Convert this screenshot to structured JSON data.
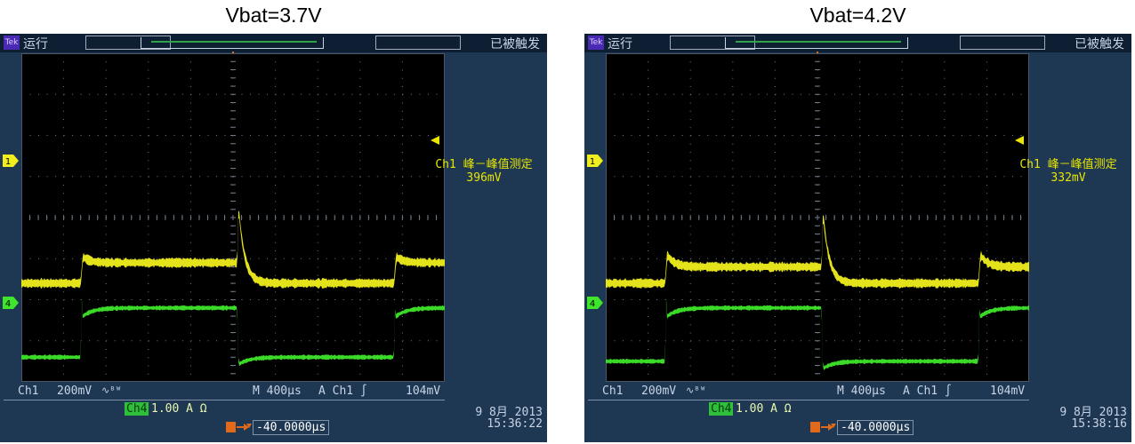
{
  "panels": [
    {
      "caption": "Vbat=3.7V",
      "brand": "Tek",
      "run_status": "运行",
      "trigger_status": "已被触发",
      "measurement": {
        "channel": "Ch1",
        "label": "峰－峰值测定",
        "value": "396mV"
      },
      "ch1_scale": "Ch1",
      "ch1_volts": "200mV",
      "ch1_coupling": "∿ᴮᵂ",
      "ch4_label": "Ch4",
      "ch4_scale": "1.00 A Ω",
      "timebase": "M 400µs",
      "trigger_source": "A  Ch1  ∫",
      "trigger_level": "104mV",
      "trigger_position": "-40.0000µs",
      "date": "9 8月 2013",
      "time": "15:36:22",
      "channel1_marker": "1",
      "channel4_marker": "4",
      "trigger_marker": "T"
    },
    {
      "caption": "Vbat=4.2V",
      "brand": "Tek",
      "run_status": "运行",
      "trigger_status": "已被触发",
      "measurement": {
        "channel": "Ch1",
        "label": "峰－峰值测定",
        "value": "332mV"
      },
      "ch1_scale": "Ch1",
      "ch1_volts": "200mV",
      "ch1_coupling": "∿ᴮᵂ",
      "ch4_label": "Ch4",
      "ch4_scale": "1.00 A Ω",
      "timebase": "M 400µs",
      "trigger_source": "A  Ch1  ∫",
      "trigger_level": "104mV",
      "trigger_position": "-40.0000µs",
      "date": "9 8月 2013",
      "time": "15:38:16",
      "channel1_marker": "1",
      "channel4_marker": "4",
      "trigger_marker": "T"
    }
  ],
  "colors": {
    "bezel": "#1e3752",
    "screen": "#000000",
    "ch1_trace": "#f0ee1c",
    "ch4_trace": "#3ee52a",
    "measurement_text": "#e8e600",
    "grid": "#6f7a88"
  },
  "waveform_shapes": [
    {
      "ch1": {
        "baseline_div": -1.6,
        "pulse_div": -1.1,
        "overshoot_div": 0.7,
        "undershoot_div": -0.5,
        "spike_div": -0.9
      },
      "ch4": {
        "low_div": -3.4,
        "high_div": -2.2
      }
    },
    {
      "ch1": {
        "baseline_div": -1.6,
        "pulse_div": -1.2,
        "overshoot_div": 0.55,
        "undershoot_div": -0.4,
        "spike_div": -0.8
      },
      "ch4": {
        "low_div": -3.5,
        "high_div": -2.2
      }
    }
  ]
}
